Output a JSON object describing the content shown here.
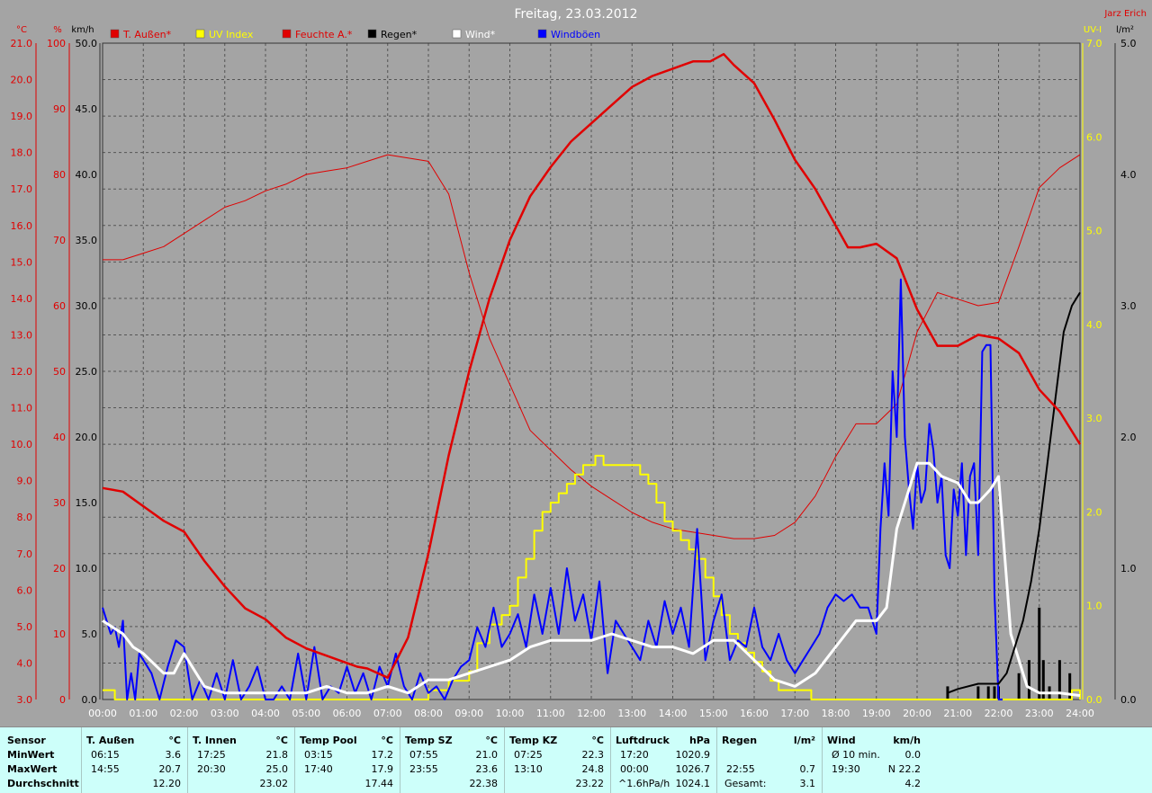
{
  "header": {
    "title": "Freitag, 23.03.2012",
    "author": "Jarz Erich"
  },
  "colors": {
    "temp": "#e00000",
    "uv": "#ffff00",
    "humidity": "#e00000",
    "rain": "#000000",
    "wind": "#ffffff",
    "gusts": "#0000ff",
    "background": "#a4a4a4",
    "grid": "#555555",
    "table_bg": "#cdfffa"
  },
  "chart_data": {
    "type": "line",
    "title": "Freitag, 23.03.2012",
    "x_ticks": [
      "00:00",
      "01:00",
      "02:00",
      "03:00",
      "04:00",
      "05:00",
      "06:00",
      "07:00",
      "08:00",
      "09:00",
      "10:00",
      "11:00",
      "12:00",
      "13:00",
      "14:00",
      "15:00",
      "16:00",
      "17:00",
      "18:00",
      "19:00",
      "20:00",
      "21:00",
      "22:00",
      "23:00",
      "24:00"
    ],
    "xlim": [
      0,
      24
    ],
    "grid": true,
    "legend_position": "top",
    "legend": [
      {
        "label": "T. Außen*",
        "color": "#e00000"
      },
      {
        "label": "UV Index",
        "color": "#ffff00"
      },
      {
        "label": "Feuchte A.*",
        "color": "#e00000"
      },
      {
        "label": "Regen*",
        "color": "#000000"
      },
      {
        "label": "Wind*",
        "color": "#ffffff"
      },
      {
        "label": "Windböen",
        "color": "#0000ff"
      }
    ],
    "axes": {
      "temp": {
        "unit": "°C",
        "min": 3.0,
        "max": 21.0,
        "ticks": [
          "3.0",
          "4.0",
          "5.0",
          "6.0",
          "7.0",
          "8.0",
          "9.0",
          "10.0",
          "11.0",
          "12.0",
          "13.0",
          "14.0",
          "15.0",
          "16.0",
          "17.0",
          "18.0",
          "19.0",
          "20.0",
          "21.0"
        ]
      },
      "humidity": {
        "unit": "%",
        "min": 0,
        "max": 100,
        "ticks": [
          "0",
          "10",
          "20",
          "30",
          "40",
          "50",
          "60",
          "70",
          "80",
          "90",
          "100"
        ]
      },
      "wind": {
        "unit": "km/h",
        "min": 0,
        "max": 50,
        "ticks": [
          "0.0",
          "5.0",
          "10.0",
          "15.0",
          "20.0",
          "25.0",
          "30.0",
          "35.0",
          "40.0",
          "45.0",
          "50.0"
        ]
      },
      "uv": {
        "unit": "UV-I",
        "min": 0,
        "max": 7,
        "ticks": [
          "0.0",
          "1.0",
          "2.0",
          "3.0",
          "4.0",
          "5.0",
          "6.0",
          "7.0"
        ]
      },
      "rain": {
        "unit": "l/m²",
        "min": 0,
        "max": 5,
        "ticks": [
          "0.0",
          "1.0",
          "2.0",
          "3.0",
          "4.0",
          "5.0"
        ]
      }
    },
    "series": [
      {
        "name": "T. Außen*",
        "axis": "temp",
        "color": "#e00000",
        "width": 2.5,
        "x": [
          0,
          0.5,
          1,
          1.5,
          2,
          2.5,
          3,
          3.5,
          4,
          4.5,
          5,
          5.5,
          6,
          6.25,
          6.5,
          7,
          7.5,
          8,
          8.5,
          9,
          9.5,
          10,
          10.5,
          11,
          11.5,
          12,
          12.5,
          13,
          13.5,
          14,
          14.5,
          14.92,
          15.25,
          15.5,
          16,
          16.5,
          17,
          17.5,
          18,
          18.3,
          18.6,
          19,
          19.5,
          20,
          20.5,
          21,
          21.5,
          22,
          22.5,
          23,
          23.5,
          24
        ],
        "y": [
          8.8,
          8.7,
          8.3,
          7.9,
          7.6,
          6.8,
          6.1,
          5.5,
          5.2,
          4.7,
          4.4,
          4.2,
          4.0,
          3.9,
          3.85,
          3.6,
          4.7,
          7.0,
          9.7,
          12.0,
          14.0,
          15.6,
          16.8,
          17.6,
          18.3,
          18.8,
          19.3,
          19.8,
          20.1,
          20.3,
          20.5,
          20.5,
          20.7,
          20.4,
          19.9,
          18.9,
          17.8,
          17.0,
          16.0,
          15.4,
          15.4,
          15.5,
          15.1,
          13.7,
          12.7,
          12.7,
          13.0,
          12.9,
          12.5,
          11.5,
          10.9,
          10.0
        ]
      },
      {
        "name": "Feuchte A.*",
        "axis": "humidity",
        "color": "#e00000",
        "width": 1,
        "x": [
          0,
          0.5,
          1,
          1.5,
          2,
          2.5,
          3,
          3.5,
          4,
          4.5,
          5,
          5.5,
          6,
          6.5,
          7,
          7.5,
          8,
          8.5,
          9,
          9.5,
          10,
          10.5,
          11,
          11.5,
          12,
          12.5,
          13,
          13.5,
          14,
          14.5,
          15,
          15.5,
          16,
          16.5,
          17,
          17.5,
          18,
          18.5,
          19,
          19.5,
          20,
          20.5,
          21,
          21.5,
          22,
          22.5,
          23,
          23.5,
          24
        ],
        "y": [
          67,
          67,
          68,
          69,
          71,
          73,
          75,
          76,
          77.5,
          78.5,
          80,
          80.5,
          81,
          82,
          83,
          82.5,
          82,
          77,
          65,
          55,
          48,
          41,
          38,
          35,
          32.5,
          30.5,
          28.5,
          27,
          26,
          25.5,
          25,
          24.5,
          24.5,
          25,
          27,
          31,
          37,
          42,
          42,
          45,
          56,
          62,
          61,
          60,
          60.5,
          69,
          78,
          81,
          83
        ]
      },
      {
        "name": "Wind*",
        "axis": "wind",
        "color": "#ffffff",
        "width": 3,
        "x": [
          0,
          0.5,
          0.75,
          1,
          1.5,
          1.75,
          2,
          2.5,
          3,
          3.5,
          4,
          4.5,
          5,
          5.5,
          6,
          6.5,
          7,
          7.5,
          8,
          8.5,
          9,
          9.5,
          10,
          10.5,
          11,
          11.5,
          12,
          12.5,
          13,
          13.5,
          14,
          14.5,
          15,
          15.5,
          16,
          16.5,
          17,
          17.5,
          18,
          18.5,
          19,
          19.25,
          19.5,
          20,
          20.3,
          20.6,
          21,
          21.3,
          21.5,
          21.8,
          22,
          22.3,
          22.7,
          23,
          23.5,
          24
        ],
        "y": [
          6,
          5,
          4,
          3.5,
          2,
          2,
          3.5,
          1,
          0.5,
          0.5,
          0.5,
          0.5,
          0.5,
          1,
          0.5,
          0.5,
          1,
          0.5,
          1.5,
          1.5,
          2,
          2.5,
          3,
          4,
          4.5,
          4.5,
          4.5,
          5,
          4.5,
          4,
          4,
          3.5,
          4.5,
          4.5,
          3,
          1.5,
          1,
          2,
          4,
          6,
          6,
          7,
          13,
          18,
          18,
          17,
          16.5,
          15,
          15,
          16,
          17,
          5,
          1,
          0.5,
          0.5,
          0.3
        ]
      },
      {
        "name": "Windböen",
        "axis": "wind",
        "color": "#0000ff",
        "width": 2,
        "x": [
          0,
          0.1,
          0.2,
          0.3,
          0.4,
          0.5,
          0.6,
          0.7,
          0.8,
          0.9,
          1.0,
          1.2,
          1.4,
          1.6,
          1.8,
          2.0,
          2.2,
          2.4,
          2.6,
          2.8,
          3.0,
          3.2,
          3.4,
          3.6,
          3.8,
          4.0,
          4.2,
          4.4,
          4.6,
          4.8,
          5.0,
          5.2,
          5.4,
          5.6,
          5.8,
          6.0,
          6.2,
          6.4,
          6.6,
          6.8,
          7.0,
          7.2,
          7.4,
          7.6,
          7.8,
          8.0,
          8.2,
          8.4,
          8.6,
          8.8,
          9.0,
          9.2,
          9.4,
          9.6,
          9.8,
          10.0,
          10.2,
          10.4,
          10.6,
          10.8,
          11.0,
          11.2,
          11.4,
          11.6,
          11.8,
          12.0,
          12.2,
          12.4,
          12.6,
          12.8,
          13.0,
          13.2,
          13.4,
          13.6,
          13.8,
          14.0,
          14.2,
          14.4,
          14.6,
          14.8,
          15.0,
          15.2,
          15.4,
          15.6,
          15.8,
          16.0,
          16.2,
          16.4,
          16.6,
          16.8,
          17.0,
          17.2,
          17.4,
          17.6,
          17.8,
          18.0,
          18.2,
          18.4,
          18.6,
          18.8,
          19.0,
          19.1,
          19.2,
          19.3,
          19.4,
          19.5,
          19.6,
          19.7,
          19.8,
          19.9,
          20.0,
          20.1,
          20.2,
          20.3,
          20.4,
          20.5,
          20.6,
          20.7,
          20.8,
          20.9,
          21.0,
          21.1,
          21.2,
          21.3,
          21.4,
          21.5,
          21.6,
          21.7,
          21.8,
          21.9,
          22.0,
          22.1
        ],
        "y": [
          7,
          6,
          5,
          5.5,
          4,
          6,
          0,
          2,
          0,
          3.5,
          3,
          2,
          0,
          2.5,
          4.5,
          4,
          0,
          1.5,
          0,
          2,
          0,
          3,
          0,
          1,
          2.5,
          0,
          0,
          1,
          0,
          3.5,
          0,
          4,
          0,
          1,
          0.5,
          2.5,
          0.5,
          2,
          0,
          2.5,
          1,
          3.5,
          1,
          0,
          2,
          0.5,
          1,
          0,
          1.5,
          2.5,
          3,
          5.5,
          4,
          7,
          4,
          5,
          6.5,
          4,
          8,
          5,
          8.5,
          5,
          10,
          6,
          8,
          4.5,
          9,
          2,
          6,
          5,
          4,
          3,
          6,
          4,
          7.5,
          5,
          7,
          4,
          13,
          3,
          6,
          8,
          3,
          4.5,
          4,
          7,
          4,
          3,
          5,
          3,
          2,
          3,
          4,
          5,
          7,
          8,
          7.5,
          8,
          7,
          7,
          5,
          13,
          18,
          14,
          25,
          20,
          32,
          20,
          16,
          13,
          18,
          15,
          16,
          21,
          19,
          15,
          17,
          11,
          10,
          16,
          14,
          18,
          11,
          17,
          18,
          11,
          26.5,
          27,
          27,
          8,
          0,
          0
        ]
      },
      {
        "name": "UV Index",
        "axis": "uv",
        "color": "#ffff00",
        "width": 2,
        "step": true,
        "x": [
          0,
          0.3,
          8.0,
          8.2,
          8.5,
          9.0,
          9.2,
          9.5,
          9.8,
          10.0,
          10.2,
          10.4,
          10.6,
          10.8,
          11.0,
          11.2,
          11.4,
          11.6,
          11.8,
          11.9,
          12.1,
          12.3,
          12.9,
          13.2,
          13.4,
          13.6,
          13.8,
          14.0,
          14.2,
          14.4,
          14.6,
          14.8,
          15.0,
          15.2,
          15.4,
          15.6,
          15.8,
          16.0,
          16.2,
          16.4,
          16.6,
          16.8,
          17.0,
          17.2,
          17.4,
          23.8,
          24
        ],
        "y": [
          0.1,
          0,
          0.1,
          0.1,
          0.2,
          0.3,
          0.6,
          0.8,
          0.9,
          1.0,
          1.3,
          1.5,
          1.8,
          2.0,
          2.1,
          2.2,
          2.3,
          2.4,
          2.5,
          2.5,
          2.6,
          2.5,
          2.5,
          2.4,
          2.3,
          2.1,
          1.9,
          1.8,
          1.7,
          1.6,
          1.5,
          1.3,
          1.1,
          0.9,
          0.7,
          0.6,
          0.5,
          0.4,
          0.3,
          0.2,
          0.1,
          0.1,
          0.1,
          0.1,
          0,
          0.1,
          0
        ]
      },
      {
        "name": "Regen*",
        "axis": "rain",
        "color": "#000000",
        "width": 2,
        "x": [
          20.75,
          21.0,
          21.5,
          22.0,
          22.2,
          22.4,
          22.6,
          22.8,
          23.0,
          23.2,
          23.4,
          23.6,
          23.8,
          24.0
        ],
        "y": [
          0.05,
          0.08,
          0.12,
          0.12,
          0.2,
          0.4,
          0.6,
          0.9,
          1.3,
          1.8,
          2.3,
          2.8,
          3.0,
          3.1
        ]
      }
    ],
    "rain_bars": {
      "axis": "rain",
      "x": [
        20.75,
        21.5,
        21.75,
        21.9,
        22.0,
        22.5,
        22.75,
        23.0,
        23.1,
        23.25,
        23.5,
        23.75
      ],
      "y": [
        0.1,
        0.1,
        0.1,
        0.1,
        0.1,
        0.2,
        0.3,
        0.7,
        0.3,
        0.1,
        0.3,
        0.2
      ]
    }
  },
  "stats": {
    "columns": [
      {
        "sensor": "T. Außen",
        "unit": "°C",
        "min_time": "06:15",
        "min_val": "3.6",
        "max_time": "14:55",
        "max_val": "20.7",
        "avg": "12.20"
      },
      {
        "sensor": "T. Innen",
        "unit": "°C",
        "min_time": "17:25",
        "min_val": "21.8",
        "max_time": "20:30",
        "max_val": "25.0",
        "avg": "23.02"
      },
      {
        "sensor": "Temp Pool",
        "unit": "°C",
        "min_time": "03:15",
        "min_val": "17.2",
        "max_time": "17:40",
        "max_val": "17.9",
        "avg": "17.44"
      },
      {
        "sensor": "Temp SZ",
        "unit": "°C",
        "min_time": "07:55",
        "min_val": "21.0",
        "max_time": "23:55",
        "max_val": "23.6",
        "avg": "22.38"
      },
      {
        "sensor": "Temp KZ",
        "unit": "°C",
        "min_time": "07:25",
        "min_val": "22.3",
        "max_time": "13:10",
        "max_val": "24.8",
        "avg": "23.22"
      },
      {
        "sensor": "Luftdruck",
        "unit": "hPa",
        "min_time": "17:20",
        "min_val": "1020.9",
        "max_time": "00:00",
        "max_val": "1026.7",
        "avg_label": "^1.6hPa/h",
        "avg": "1024.1"
      },
      {
        "sensor": "Regen",
        "unit": "l/m²",
        "min_time": "",
        "min_val": "",
        "max_time": "22:55",
        "max_val": "0.7",
        "avg_label": "Gesamt:",
        "avg": "3.1"
      },
      {
        "sensor": "Wind",
        "unit": "km/h",
        "min_time": "Ø 10 min.",
        "min_val": "0.0",
        "max_time": "19:30",
        "max_val": "N 22.2",
        "avg": "4.2"
      }
    ],
    "row_labels": {
      "sensor": "Sensor",
      "min": "MinWert",
      "max": "MaxWert",
      "avg": "Durchschnitt"
    }
  }
}
